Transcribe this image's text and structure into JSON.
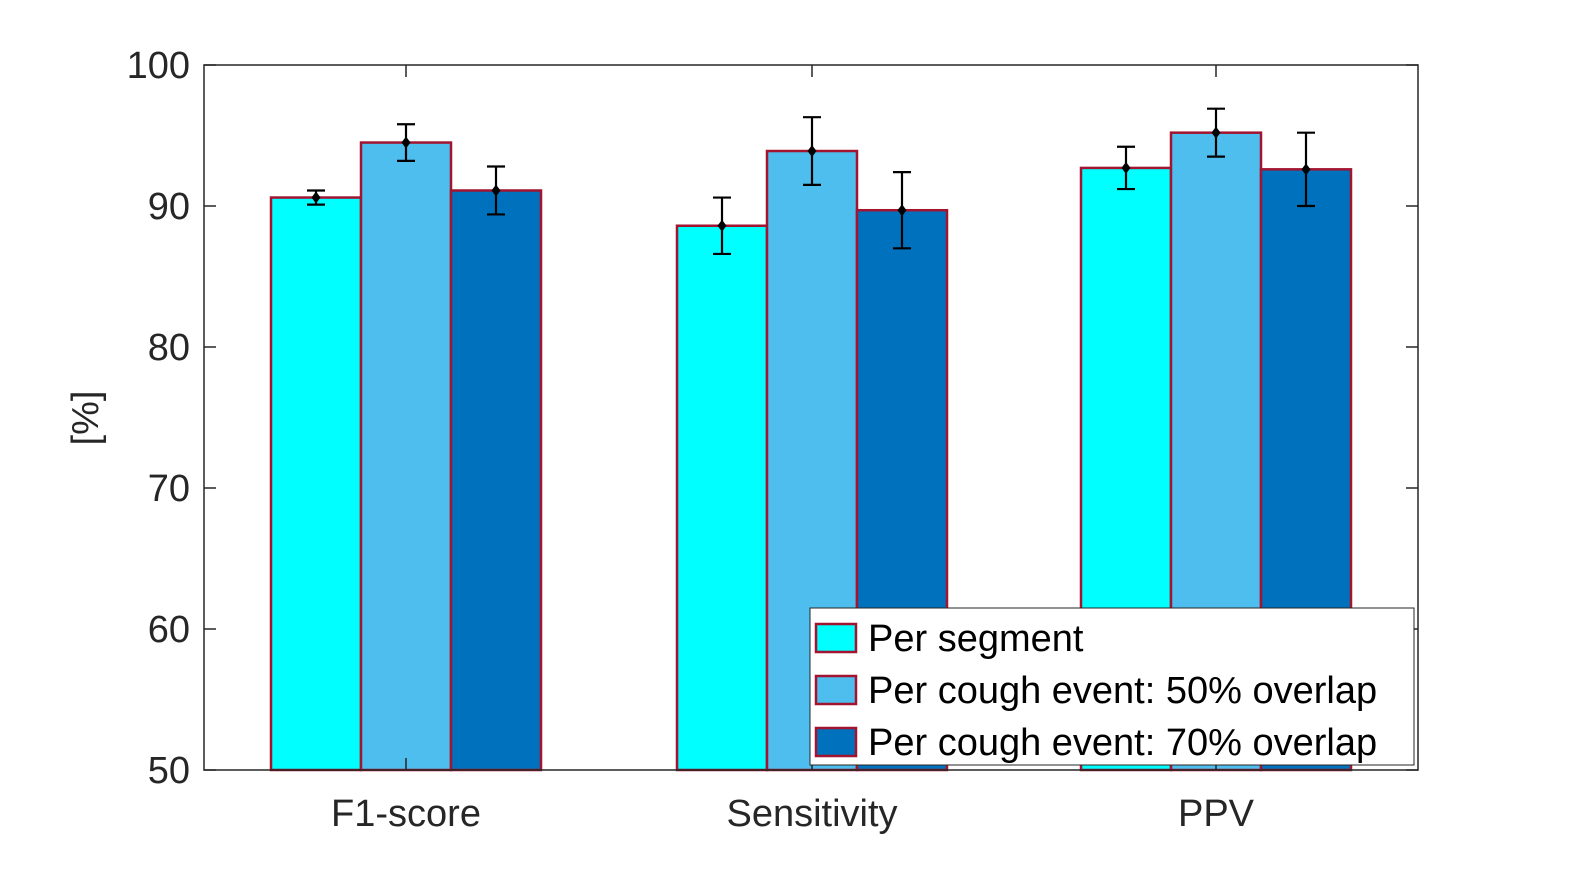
{
  "chart_data": {
    "type": "bar",
    "title": "",
    "xlabel": "",
    "ylabel": "[%]",
    "ylim": [
      50,
      100
    ],
    "yticks": [
      50,
      60,
      70,
      80,
      90,
      100
    ],
    "categories": [
      "F1-score",
      "Sensitivity",
      "PPV"
    ],
    "series": [
      {
        "name": "Per segment",
        "color": "#00FFFF",
        "values": [
          90.6,
          88.6,
          92.7
        ],
        "error": [
          0.5,
          2.0,
          1.5
        ]
      },
      {
        "name": "Per cough event: 50% overlap",
        "color": "#4DBEEE",
        "values": [
          94.5,
          93.9,
          95.2
        ],
        "error": [
          1.3,
          2.4,
          1.7
        ]
      },
      {
        "name": "Per cough event: 70% overlap",
        "color": "#0072BD",
        "values": [
          91.1,
          89.7,
          92.6
        ],
        "error": [
          1.7,
          2.7,
          2.6
        ]
      }
    ],
    "bar_edge_color": "#A2142F",
    "marker_color": "#000000",
    "grid": false,
    "legend_position": "bottom-right"
  }
}
